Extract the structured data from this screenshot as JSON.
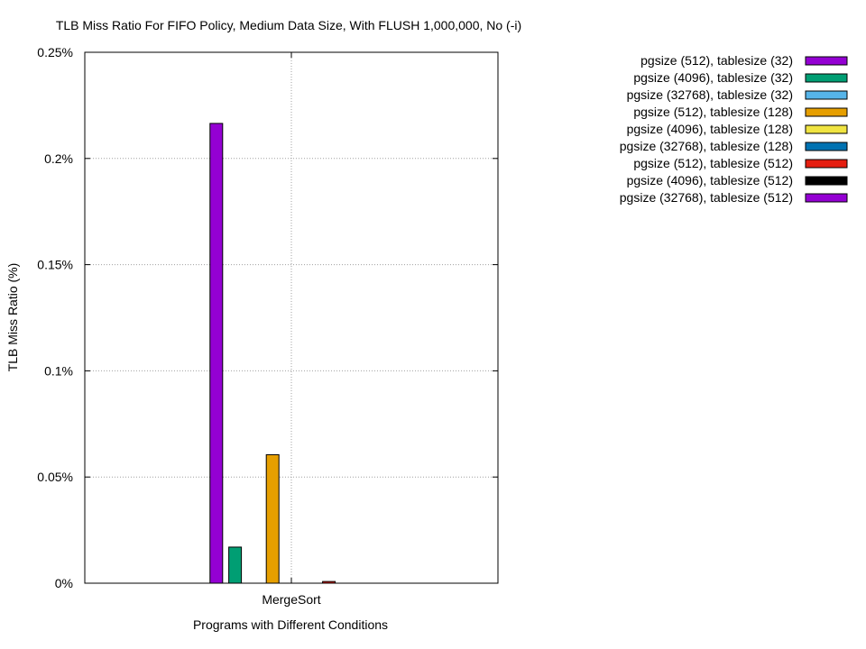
{
  "chart_data": {
    "type": "bar",
    "title": "TLB Miss Ratio For FIFO Policy, Medium Data Size, With FLUSH 1,000,000, No (-i)",
    "xlabel": "Programs with Different Conditions",
    "ylabel": "TLB Miss Ratio (%)",
    "categories": [
      "MergeSort"
    ],
    "ylim": [
      0,
      0.25
    ],
    "yticks": [
      {
        "value": 0,
        "label": "0%"
      },
      {
        "value": 0.05,
        "label": "0.05%"
      },
      {
        "value": 0.1,
        "label": "0.1%"
      },
      {
        "value": 0.15,
        "label": "0.15%"
      },
      {
        "value": 0.2,
        "label": "0.2%"
      },
      {
        "value": 0.25,
        "label": "0.25%"
      }
    ],
    "grid": true,
    "legend_position": "right",
    "series": [
      {
        "name": "pgsize (512), tablesize (32)",
        "color": "#9400d3",
        "values": [
          0.2165
        ]
      },
      {
        "name": "pgsize (4096), tablesize (32)",
        "color": "#009e73",
        "values": [
          0.017
        ]
      },
      {
        "name": "pgsize (32768), tablesize (32)",
        "color": "#56b4e9",
        "values": [
          0
        ]
      },
      {
        "name": "pgsize (512), tablesize (128)",
        "color": "#e69f00",
        "values": [
          0.0605
        ]
      },
      {
        "name": "pgsize (4096), tablesize (128)",
        "color": "#f0e442",
        "values": [
          0
        ]
      },
      {
        "name": "pgsize (32768), tablesize (128)",
        "color": "#0072b2",
        "values": [
          0
        ]
      },
      {
        "name": "pgsize (512), tablesize (512)",
        "color": "#e51e10",
        "values": [
          0.0008
        ]
      },
      {
        "name": "pgsize (4096), tablesize (512)",
        "color": "#000000",
        "values": [
          0
        ]
      },
      {
        "name": "pgsize (32768), tablesize (512)",
        "color": "#9400d3",
        "values": [
          0
        ]
      }
    ]
  }
}
